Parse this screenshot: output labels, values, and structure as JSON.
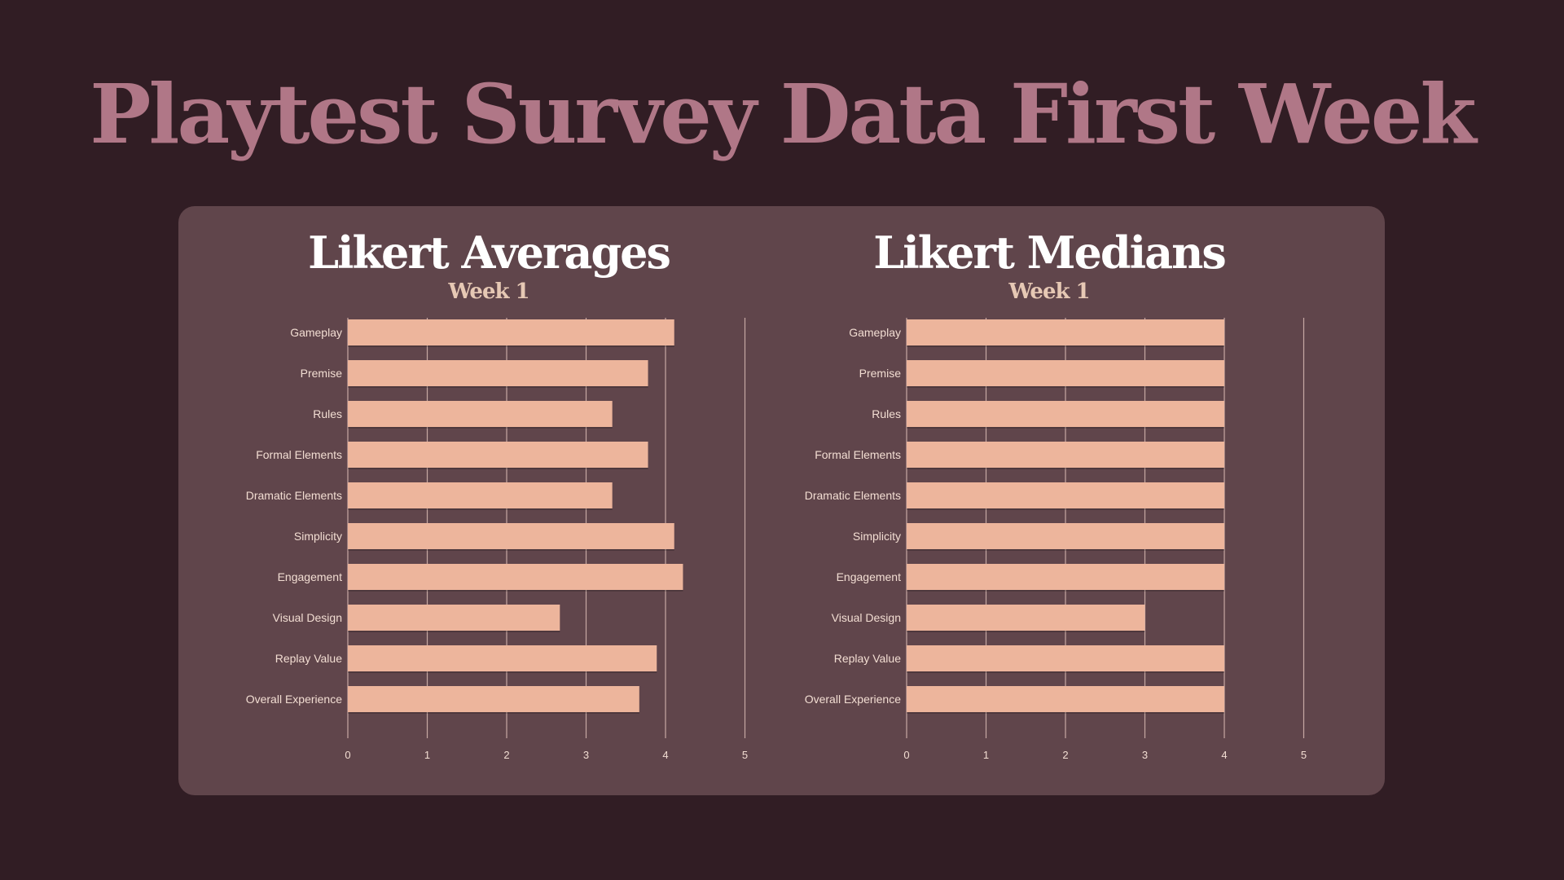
{
  "title": "Playtest Survey Data First Week",
  "colors": {
    "background": "#311d24",
    "card": "#60454b",
    "title": "#b07787",
    "bar": "#edb59c",
    "grid": "#c7a9a3",
    "label": "#f2ddd2"
  },
  "chart_data": [
    {
      "type": "bar",
      "orientation": "horizontal",
      "title": "Likert Averages",
      "subtitle": "Week 1",
      "categories": [
        "Gameplay",
        "Premise",
        "Rules",
        "Formal Elements",
        "Dramatic Elements",
        "Simplicity",
        "Engagement",
        "Visual Design",
        "Replay Value",
        "Overall Experience"
      ],
      "values": [
        4.11,
        3.78,
        3.33,
        3.78,
        3.33,
        4.11,
        4.22,
        2.67,
        3.89,
        3.67
      ],
      "xlim": [
        0,
        5
      ],
      "xticks": [
        "0",
        "1",
        "2",
        "3",
        "4",
        "5"
      ],
      "grid": true
    },
    {
      "type": "bar",
      "orientation": "horizontal",
      "title": "Likert Medians",
      "subtitle": "Week 1",
      "categories": [
        "Gameplay",
        "Premise",
        "Rules",
        "Formal Elements",
        "Dramatic Elements",
        "Simplicity",
        "Engagement",
        "Visual Design",
        "Replay Value",
        "Overall Experience"
      ],
      "values": [
        4,
        4,
        4,
        4,
        4,
        4,
        4,
        3,
        4,
        4
      ],
      "xlim": [
        0,
        5
      ],
      "xticks": [
        "0",
        "1",
        "2",
        "3",
        "4",
        "5"
      ],
      "grid": true
    }
  ]
}
